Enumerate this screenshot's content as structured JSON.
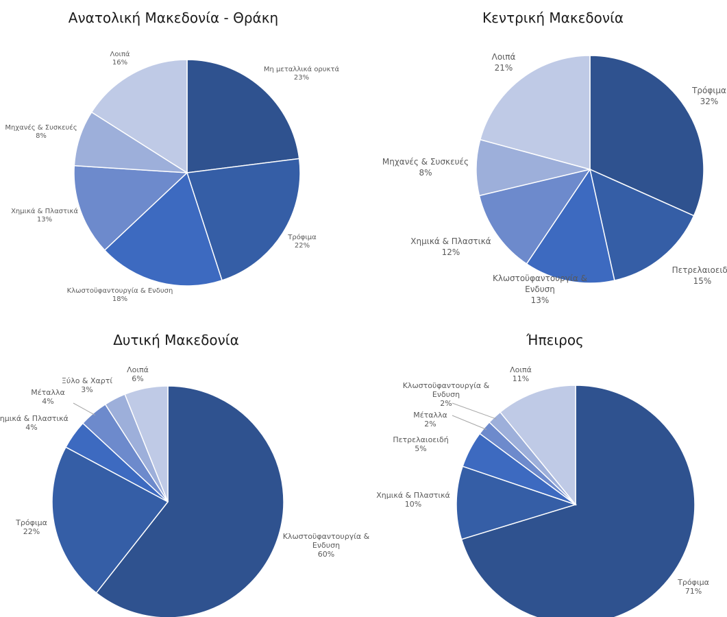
{
  "chart_data": [
    {
      "type": "pie",
      "title": "Ανατολική Μακεδονία - Θράκη",
      "slices": [
        {
          "label": "Μη μεταλλικά ορυκτά",
          "value": 23,
          "display": "23%",
          "color": "#2f528f"
        },
        {
          "label": "Τρόφιμα",
          "value": 22,
          "display": "22%",
          "color": "#355ea6"
        },
        {
          "label": "Κλωστοϋφαντουργία & Ενδυση",
          "value": 18,
          "display": "18%",
          "color": "#3d6ac0"
        },
        {
          "label": "Χημικά & Πλαστικά",
          "value": 13,
          "display": "13%",
          "color": "#6d8acc"
        },
        {
          "label": "Μηχανές & Συσκευές",
          "value": 8,
          "display": "8%",
          "color": "#9dafda"
        },
        {
          "label": "Λοιπά",
          "value": 16,
          "display": "16%",
          "color": "#bfcae6"
        }
      ]
    },
    {
      "type": "pie",
      "title": "Κεντρική Μακεδονία",
      "slices": [
        {
          "label": "Τρόφιμα",
          "value": 32,
          "display": "32%",
          "color": "#2f528f"
        },
        {
          "label": "Πετρελαιοειδή",
          "value": 15,
          "display": "15%",
          "color": "#355ea6"
        },
        {
          "label": "Κλωστοϋφαντουργία & Ενδυση",
          "value": 13,
          "display": "13%",
          "color": "#3d6ac0"
        },
        {
          "label": "Χημικά & Πλαστικά",
          "value": 12,
          "display": "12%",
          "color": "#6d8acc"
        },
        {
          "label": "Μηχανές & Συσκευές",
          "value": 8,
          "display": "8%",
          "color": "#9dafda"
        },
        {
          "label": "Λοιπά",
          "value": 21,
          "display": "21%",
          "color": "#bfcae6"
        }
      ]
    },
    {
      "type": "pie",
      "title": "Δυτική Μακεδονία",
      "slices": [
        {
          "label": "Κλωστοϋφαντουργία & Ενδυση",
          "value": 60,
          "display": "60%",
          "color": "#2f528f"
        },
        {
          "label": "Τρόφιμα",
          "value": 22,
          "display": "22%",
          "color": "#355ea6"
        },
        {
          "label": "Χημικά & Πλαστικά",
          "value": 4,
          "display": "4%",
          "color": "#3d6ac0"
        },
        {
          "label": "Μέταλλα",
          "value": 4,
          "display": "4%",
          "color": "#6d8acc"
        },
        {
          "label": "Ξύλο & Χαρτί",
          "value": 3,
          "display": "3%",
          "color": "#9dafda"
        },
        {
          "label": "Λοιπά",
          "value": 6,
          "display": "6%",
          "color": "#bfcae6"
        }
      ]
    },
    {
      "type": "pie",
      "title": "Ήπειρος",
      "slices": [
        {
          "label": "Τρόφιμα",
          "value": 71,
          "display": "71%",
          "color": "#2f528f"
        },
        {
          "label": "Χημικά & Πλαστικά",
          "value": 10,
          "display": "10%",
          "color": "#355ea6"
        },
        {
          "label": "Πετρελαιοειδή",
          "value": 5,
          "display": "5%",
          "color": "#3d6ac0"
        },
        {
          "label": "Μέταλλα",
          "value": 2,
          "display": "2%",
          "color": "#6d8acc"
        },
        {
          "label": "Κλωστοϋφαντουργία & Ενδυση",
          "value": 2,
          "display": "2%",
          "color": "#9dafda"
        },
        {
          "label": "Λοιπά",
          "value": 11,
          "display": "11%",
          "color": "#bfcae6"
        }
      ]
    }
  ]
}
